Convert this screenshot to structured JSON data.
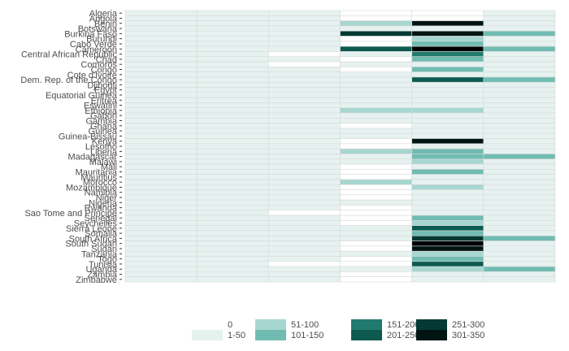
{
  "chart_data": {
    "type": "heatmap",
    "title": "",
    "xlabel": "",
    "ylabel": "",
    "columns": 6,
    "rows": [
      "Algeria",
      "Angola",
      "Benin",
      "Botswana",
      "Burkina Faso",
      "Burundi",
      "Cabo Verde",
      "Cameroon",
      "Central African Republic",
      "Chad",
      "Comoros",
      "Congo",
      "Cote d'Ivoire",
      "Dem. Rep. of the Congo",
      "Djibouti",
      "Egypt",
      "Equatorial Guinea",
      "Eritrea",
      "Eswatini",
      "Ethiopia",
      "Gabon",
      "Gambia",
      "Ghana",
      "Guinea",
      "Guinea-Bissau",
      "Kenya",
      "Lesotho",
      "Liberia",
      "Madagascar",
      "Malawi",
      "Mali",
      "Mauritania",
      "Mauritius",
      "Morocco",
      "Mozambique",
      "Namibia",
      "Niger",
      "Nigeria",
      "Rwanda",
      "Sao Tome and Principe",
      "Senegal",
      "Seychelles",
      "Sierra Leone",
      "Somalia",
      "South Africa",
      "South Sudan",
      "Sudan",
      "Tanzania",
      "Togo",
      "Tunisia",
      "Uganda",
      "Zambia",
      "Zimbabwe"
    ],
    "legend": {
      "position": "bottom",
      "entries": [
        {
          "label": "0",
          "color": "#ffffff"
        },
        {
          "label": "1-50",
          "color": "#e6f2f0"
        },
        {
          "label": "51-100",
          "color": "#a7d6d0"
        },
        {
          "label": "101-150",
          "color": "#70bcb2"
        },
        {
          "label": "151-200",
          "color": "#217a6e"
        },
        {
          "label": "201-250",
          "color": "#0c5a50"
        },
        {
          "label": "251-300",
          "color": "#033a33"
        },
        {
          "label": "301-350",
          "color": "#001512"
        }
      ]
    },
    "values": [
      [
        1,
        1,
        1,
        0,
        0,
        1
      ],
      [
        1,
        1,
        1,
        0,
        0,
        1
      ],
      [
        1,
        1,
        1,
        2,
        7,
        1
      ],
      [
        1,
        1,
        1,
        1,
        1,
        1
      ],
      [
        1,
        1,
        1,
        6,
        7,
        3
      ],
      [
        1,
        1,
        1,
        0,
        2,
        1
      ],
      [
        1,
        1,
        1,
        0,
        3,
        1
      ],
      [
        1,
        1,
        1,
        5,
        8,
        3
      ],
      [
        1,
        1,
        0,
        1,
        4,
        1
      ],
      [
        1,
        1,
        1,
        0,
        3,
        1
      ],
      [
        1,
        1,
        0,
        1,
        1,
        1
      ],
      [
        1,
        1,
        1,
        0,
        3,
        1
      ],
      [
        1,
        1,
        1,
        1,
        1,
        1
      ],
      [
        1,
        1,
        1,
        1,
        5,
        3
      ],
      [
        1,
        1,
        1,
        1,
        1,
        1
      ],
      [
        1,
        1,
        1,
        1,
        1,
        1
      ],
      [
        1,
        1,
        1,
        1,
        1,
        1
      ],
      [
        1,
        1,
        1,
        1,
        1,
        1
      ],
      [
        1,
        1,
        1,
        1,
        1,
        1
      ],
      [
        1,
        1,
        1,
        2,
        2,
        1
      ],
      [
        1,
        1,
        1,
        1,
        1,
        1
      ],
      [
        1,
        1,
        1,
        1,
        1,
        1
      ],
      [
        1,
        1,
        1,
        0,
        1,
        1
      ],
      [
        1,
        1,
        1,
        1,
        1,
        1
      ],
      [
        1,
        1,
        1,
        1,
        1,
        1
      ],
      [
        1,
        1,
        1,
        0,
        7,
        1
      ],
      [
        1,
        1,
        1,
        0,
        1,
        1
      ],
      [
        1,
        1,
        1,
        2,
        3,
        1
      ],
      [
        1,
        1,
        1,
        1,
        3,
        3
      ],
      [
        1,
        1,
        1,
        1,
        2,
        1
      ],
      [
        1,
        1,
        1,
        0,
        1,
        1
      ],
      [
        1,
        1,
        1,
        0,
        3,
        1
      ],
      [
        1,
        1,
        1,
        0,
        1,
        1
      ],
      [
        1,
        1,
        1,
        2,
        1,
        1
      ],
      [
        1,
        1,
        1,
        0,
        2,
        1
      ],
      [
        1,
        1,
        1,
        0,
        1,
        1
      ],
      [
        1,
        1,
        1,
        0,
        1,
        1
      ],
      [
        1,
        1,
        1,
        1,
        1,
        1
      ],
      [
        1,
        1,
        1,
        0,
        1,
        1
      ],
      [
        1,
        1,
        0,
        0,
        1,
        1
      ],
      [
        1,
        1,
        1,
        0,
        3,
        1
      ],
      [
        1,
        1,
        1,
        0,
        2,
        1
      ],
      [
        1,
        1,
        1,
        1,
        5,
        1
      ],
      [
        1,
        1,
        1,
        1,
        3,
        1
      ],
      [
        1,
        1,
        1,
        1,
        6,
        3
      ],
      [
        1,
        1,
        1,
        0,
        8,
        1
      ],
      [
        1,
        1,
        1,
        0,
        7,
        1
      ],
      [
        1,
        1,
        1,
        1,
        2,
        1
      ],
      [
        1,
        1,
        1,
        0,
        3,
        1
      ],
      [
        1,
        1,
        0,
        0,
        5,
        1
      ],
      [
        1,
        1,
        1,
        1,
        2,
        3
      ],
      [
        1,
        1,
        1,
        0,
        1,
        1
      ],
      [
        1,
        1,
        1,
        0,
        1,
        1
      ]
    ]
  }
}
